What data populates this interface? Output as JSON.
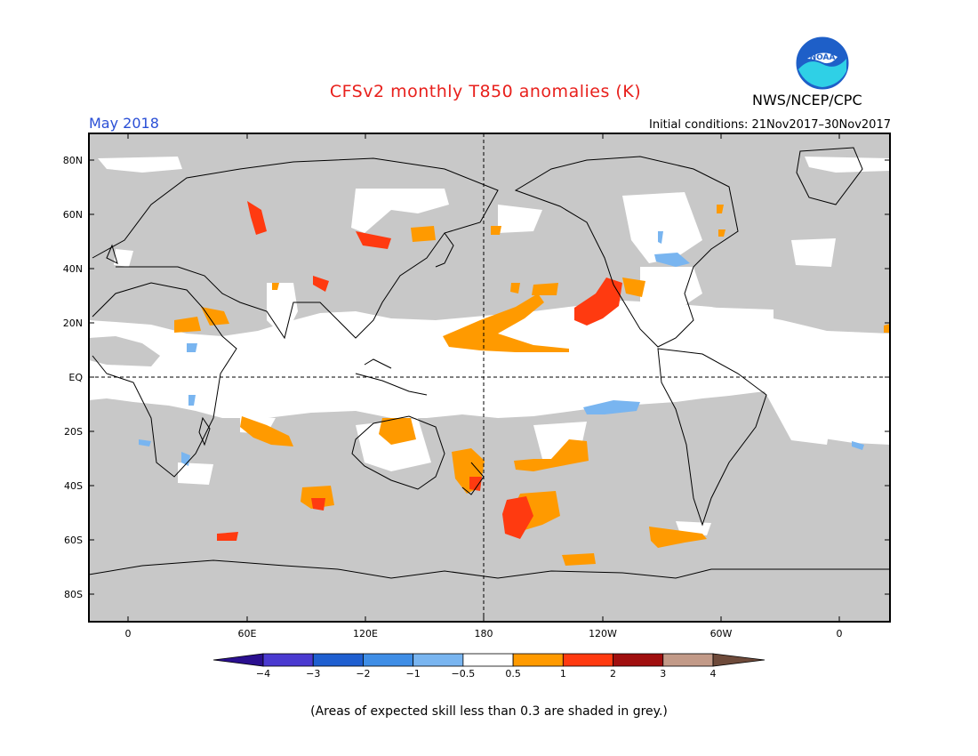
{
  "title": "CFSv2 monthly T850 anomalies (K)",
  "agency": "NWS/NCEP/CPC",
  "logo_text": "NOAA",
  "valid_month": "May 2018",
  "initial_conditions": "Initial conditions: 21Nov2017–30Nov2017",
  "caption": "(Areas of expected skill less than 0.3 are shaded in grey.)",
  "lat_ticks": [
    "80N",
    "60N",
    "40N",
    "20N",
    "EQ",
    "20S",
    "40S",
    "60S",
    "80S"
  ],
  "lon_ticks": [
    "0",
    "60E",
    "120E",
    "180",
    "120W",
    "60W",
    "0"
  ],
  "colorbar": {
    "labels": [
      "−4",
      "−3",
      "−2",
      "−1",
      "−0.5",
      "0.5",
      "1",
      "2",
      "3",
      "4"
    ],
    "colors": [
      "#2a0f8f",
      "#4a3ad0",
      "#1f5fd0",
      "#3f8ee6",
      "#79b5f0",
      "#ffffff",
      "#ff9a00",
      "#ff3a10",
      "#a00f0f",
      "#c29a88",
      "#6e4a3a"
    ]
  },
  "colors": {
    "skill_grey": "#c8c8c8",
    "title_red": "#e8201c",
    "month_blue": "#2a4fd6",
    "anom_orange": "#ff9a00",
    "anom_red": "#ff3a10",
    "anom_lightblue": "#79b5f0"
  }
}
